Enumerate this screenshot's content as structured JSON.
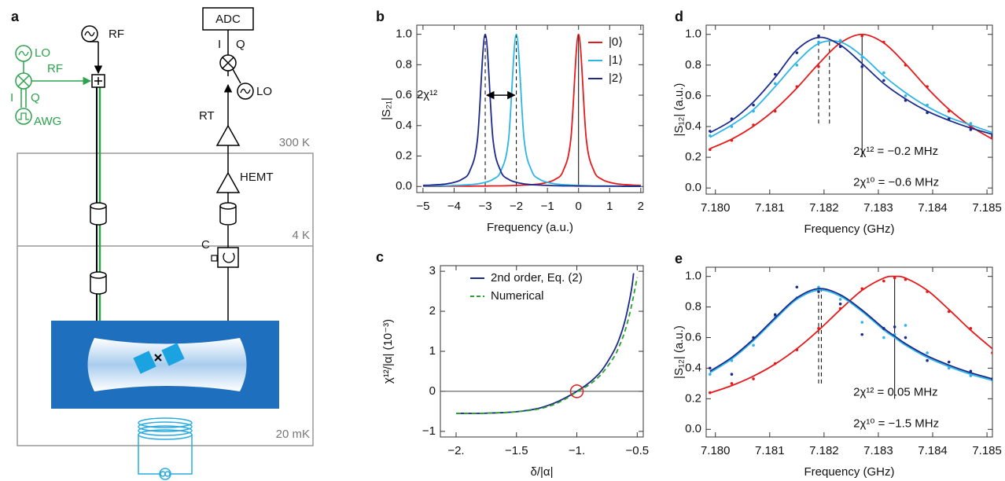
{
  "diagram": {
    "label": "a",
    "lo_source": "LO",
    "rf_mix": "RF",
    "i_awg": "I",
    "q_awg": "Q",
    "awg": "AWG",
    "rf_source": "RF",
    "adc": "ADC",
    "i_adc": "I",
    "q_adc": "Q",
    "lo_readout": "LO",
    "rt": "RT",
    "hemt": "HEMT",
    "t300": "300 K",
    "t4": "4 K",
    "t20": "20 mK",
    "circulator": "C"
  },
  "chart_data": [
    {
      "type": "line",
      "label": "b",
      "xlabel": "Frequency (a.u.)",
      "ylabel": "|S₂₁|",
      "xlim": [
        -5.2,
        2.08
      ],
      "ylim": [
        -0.04,
        1.06
      ],
      "xticks": [
        {
          "value": -5,
          "label": "−5"
        },
        {
          "value": -4,
          "label": "−4"
        },
        {
          "value": -3,
          "label": "−3"
        },
        {
          "value": -2,
          "label": "−2"
        },
        {
          "value": -1,
          "label": "−1"
        },
        0,
        1,
        2
      ],
      "yticks": [
        {
          "value": 0,
          "label": "0.0"
        },
        0.2,
        0.4,
        0.6,
        0.8,
        {
          "value": 1,
          "label": "1.0"
        }
      ],
      "legend": "top-right",
      "x": [
        -5,
        -4.75,
        -4.5,
        -4.25,
        -4,
        -3.75,
        -3.5,
        -3.25,
        -3,
        -2.75,
        -2.5,
        -2.25,
        -2,
        -1.75,
        -1.5,
        -1.25,
        -1,
        -0.75,
        -0.5,
        -0.25,
        0,
        0.25,
        0.5,
        0.75,
        1,
        1.25,
        1.5,
        1.75,
        2
      ],
      "series": [
        {
          "name": "|0⟩",
          "color": "#e41a1c",
          "values": [
            0.001,
            0.001,
            0.001,
            0.002,
            0.002,
            0.002,
            0.002,
            0.003,
            0.003,
            0.004,
            0.004,
            0.005,
            0.007,
            0.009,
            0.012,
            0.017,
            0.027,
            0.047,
            0.1,
            0.308,
            1,
            0.308,
            0.1,
            0.047,
            0.027,
            0.017,
            0.012,
            0.009,
            0.007
          ]
        },
        {
          "name": "|1⟩",
          "color": "#2eb5e8",
          "values": [
            0.003,
            0.004,
            0.004,
            0.005,
            0.007,
            0.009,
            0.012,
            0.017,
            0.027,
            0.047,
            0.1,
            0.308,
            1,
            0.308,
            0.1,
            0.047,
            0.027,
            0.017,
            0.012,
            0.009,
            0.007,
            0.005,
            0.004,
            0.004,
            0.003,
            0.003,
            0.002,
            0.002,
            0.002
          ]
        },
        {
          "name": "|2⟩",
          "color": "#1c2a8c",
          "values": [
            0.007,
            0.009,
            0.012,
            0.017,
            0.027,
            0.047,
            0.1,
            0.308,
            1,
            0.308,
            0.1,
            0.047,
            0.027,
            0.017,
            0.012,
            0.009,
            0.007,
            0.005,
            0.004,
            0.004,
            0.003,
            0.003,
            0.002,
            0.002,
            0.002,
            0.002,
            0.001,
            0.001,
            0.001
          ]
        }
      ],
      "vlines": [
        {
          "x": -3,
          "y": [
            0,
            1
          ],
          "dashed": true
        },
        {
          "x": -2,
          "y": [
            0,
            1
          ],
          "dashed": true
        },
        {
          "x": 0,
          "y": [
            0,
            1
          ],
          "dashed": false
        }
      ],
      "arrows": [
        {
          "x": [
            -3,
            -2
          ],
          "y": 0.6
        }
      ],
      "annotations": [
        {
          "text": "2χ¹²",
          "x": -4.87,
          "y": 0.6
        }
      ]
    },
    {
      "type": "line",
      "label": "c",
      "xlabel": "δ/|α|",
      "ylabel": "χ¹²/|α| (10⁻³)",
      "xlim": [
        -2.13,
        -0.45
      ],
      "ylim": [
        -1.14,
        3.14
      ],
      "xticks": [
        {
          "value": -2,
          "label": "−2."
        },
        {
          "value": -1.5,
          "label": "−1.5"
        },
        {
          "value": -1,
          "label": "−1."
        },
        {
          "value": -0.5,
          "label": "−0.5"
        }
      ],
      "yticks": [
        {
          "value": -1,
          "label": "−1"
        },
        0,
        1,
        2,
        3
      ],
      "legend": "top-center",
      "hlines": [
        0
      ],
      "markers": [
        {
          "x": -1,
          "y": 0,
          "color": "#e41a1c"
        }
      ],
      "series": [
        {
          "name": "2nd order, Eq. (2)",
          "color": "#1c2a8c",
          "x": [
            -2,
            -1.9,
            -1.8,
            -1.7,
            -1.6,
            -1.5,
            -1.4,
            -1.3,
            -1.2,
            -1.1,
            -1,
            -0.9,
            -0.8,
            -0.7,
            -0.65,
            -0.6,
            -0.55,
            -0.53
          ],
          "values": [
            -0.55,
            -0.55,
            -0.55,
            -0.54,
            -0.53,
            -0.51,
            -0.47,
            -0.41,
            -0.31,
            -0.17,
            0,
            0.21,
            0.5,
            0.97,
            1.3,
            1.78,
            2.5,
            2.95
          ]
        },
        {
          "name": "Numerical",
          "color": "#2ca02c",
          "dashed": true,
          "x": [
            -2,
            -1.9,
            -1.8,
            -1.7,
            -1.6,
            -1.5,
            -1.4,
            -1.3,
            -1.2,
            -1.1,
            -1,
            -0.9,
            -0.8,
            -0.7,
            -0.65,
            -0.6,
            -0.55,
            -0.5
          ],
          "values": [
            -0.55,
            -0.55,
            -0.55,
            -0.54,
            -0.53,
            -0.51,
            -0.48,
            -0.43,
            -0.34,
            -0.2,
            -0.01,
            0.16,
            0.42,
            0.82,
            1.12,
            1.52,
            2.1,
            2.85
          ]
        }
      ]
    },
    {
      "type": "line",
      "label": "d",
      "xlabel": "Frequency (GHz)",
      "ylabel": "|S₁₂| (a.u.)",
      "xlim": [
        7.17983,
        7.1851
      ],
      "ylim": [
        -0.04,
        1.06
      ],
      "xticks": [
        {
          "value": 7.18,
          "label": "7.180"
        },
        7.181,
        7.182,
        7.183,
        7.184,
        7.185
      ],
      "yticks": [
        {
          "value": 0,
          "label": "0.0"
        },
        0.2,
        0.4,
        0.6,
        0.8,
        {
          "value": 1,
          "label": "1.0"
        }
      ],
      "x": [
        7.1799,
        7.1803,
        7.1807,
        7.1811,
        7.1815,
        7.1819,
        7.1823,
        7.1827,
        7.1831,
        7.1835,
        7.1839,
        7.1843,
        7.1847,
        7.1851
      ],
      "series": [
        {
          "color": "#e41a1c",
          "values": [
            0.256,
            0.318,
            0.402,
            0.512,
            0.651,
            0.808,
            0.944,
            1,
            0.944,
            0.808,
            0.651,
            0.512,
            0.402,
            0.318
          ],
          "points": [
            0.25,
            0.31,
            0.41,
            0.5,
            0.66,
            0.79,
            0.96,
            0.99,
            0.95,
            0.8,
            0.66,
            0.5,
            0.4,
            0.33
          ]
        },
        {
          "color": "#2eb5e8",
          "values": [
            0.33,
            0.41,
            0.51,
            0.66,
            0.82,
            0.94,
            0.95,
            0.86,
            0.73,
            0.62,
            0.53,
            0.46,
            0.41,
            0.36
          ],
          "points": [
            0.34,
            0.4,
            0.5,
            0.68,
            0.8,
            0.95,
            0.96,
            0.85,
            0.75,
            0.6,
            0.54,
            0.45,
            0.42,
            0.35
          ]
        },
        {
          "color": "#1c2a8c",
          "values": [
            0.36,
            0.44,
            0.56,
            0.72,
            0.9,
            0.98,
            0.93,
            0.81,
            0.68,
            0.58,
            0.5,
            0.44,
            0.39,
            0.35
          ],
          "points": [
            0.37,
            0.45,
            0.54,
            0.74,
            0.88,
            0.99,
            0.92,
            0.79,
            0.7,
            0.57,
            0.49,
            0.45,
            0.38,
            0.34
          ]
        }
      ],
      "vlines": [
        {
          "x": 7.1819,
          "y": [
            0.42,
            0.98
          ],
          "dashed": true
        },
        {
          "x": 7.1821,
          "y": [
            0.42,
            0.96
          ],
          "dashed": true
        },
        {
          "x": 7.1827,
          "y": [
            0.2,
            1
          ],
          "dashed": false
        }
      ],
      "annotations": [
        {
          "text": "2χ¹² = −0.2 MHz",
          "x": 7.18254,
          "y": 0.235
        },
        {
          "text": "2χ¹⁰ = −0.6 MHz",
          "x": 7.18254,
          "y": 0.035
        }
      ]
    },
    {
      "type": "line",
      "label": "e",
      "xlabel": "Frequency (GHz)",
      "ylabel": "|S₁₂| (a.u.)",
      "xlim": [
        7.17983,
        7.1851
      ],
      "ylim": [
        -0.05,
        1.06
      ],
      "xticks": [
        {
          "value": 7.18,
          "label": "7.180"
        },
        7.181,
        7.182,
        7.183,
        7.184,
        7.185
      ],
      "yticks": [
        {
          "value": 0,
          "label": "0.0"
        },
        0.2,
        0.4,
        0.6,
        0.8,
        {
          "value": 1,
          "label": "1.0"
        }
      ],
      "x": [
        7.1799,
        7.1803,
        7.1807,
        7.1811,
        7.1815,
        7.1819,
        7.1823,
        7.1827,
        7.1831,
        7.1833,
        7.1835,
        7.1839,
        7.1843,
        7.1847,
        7.1851
      ],
      "series": [
        {
          "color": "#e41a1c",
          "values": [
            0.238,
            0.286,
            0.348,
            0.427,
            0.527,
            0.648,
            0.783,
            0.909,
            0.989,
            1,
            0.989,
            0.909,
            0.783,
            0.648,
            0.527
          ],
          "points": [
            0.24,
            0.3,
            0.33,
            0.43,
            0.52,
            0.66,
            0.79,
            0.92,
            0.97,
            0.99,
            0.98,
            0.9,
            0.77,
            0.66,
            0.5
          ]
        },
        {
          "color": "#2eb5e8",
          "values": [
            0.37,
            0.46,
            0.58,
            0.72,
            0.85,
            0.91,
            0.87,
            0.77,
            0.65,
            0.6,
            0.55,
            0.47,
            0.41,
            0.36,
            0.32
          ],
          "points": [
            0.36,
            0.45,
            0.55,
            0.74,
            0.86,
            0.93,
            0.85,
            0.7,
            0.6,
            0.62,
            0.68,
            0.5,
            0.4,
            0.35,
            0.32
          ]
        },
        {
          "color": "#1c2a8c",
          "values": [
            0.38,
            0.47,
            0.59,
            0.73,
            0.86,
            0.92,
            0.88,
            0.78,
            0.66,
            0.61,
            0.56,
            0.48,
            0.42,
            0.37,
            0.33
          ],
          "points": [
            0.4,
            0.36,
            0.6,
            0.75,
            0.93,
            0.9,
            0.82,
            0.62,
            0.66,
            0.67,
            0.6,
            0.45,
            0.44,
            0.38,
            0.33
          ]
        }
      ],
      "vlines": [
        {
          "x": 7.1819,
          "y": [
            0.3,
            0.92
          ],
          "dashed": true
        },
        {
          "x": 7.18195,
          "y": [
            0.3,
            0.92
          ],
          "dashed": true
        },
        {
          "x": 7.1833,
          "y": [
            0.2,
            1
          ],
          "dashed": false
        }
      ],
      "annotations": [
        {
          "text": "2χ¹² = 0.05 MHz",
          "x": 7.18254,
          "y": 0.24
        },
        {
          "text": "2χ¹⁰ = −1.5 MHz",
          "x": 7.18254,
          "y": 0.035
        }
      ]
    }
  ]
}
